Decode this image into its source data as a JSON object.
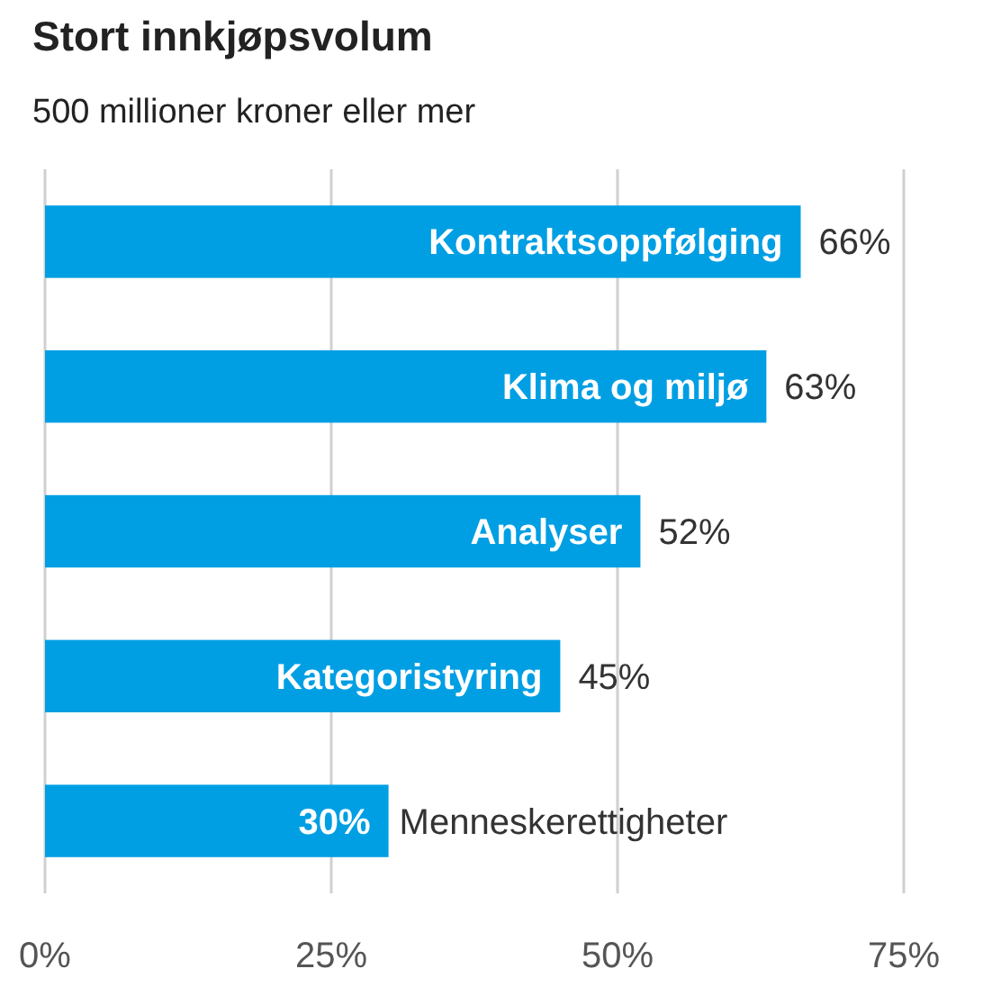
{
  "chart_data": {
    "type": "bar",
    "orientation": "horizontal",
    "title": "Stort innkjøpsvolum",
    "subtitle": "500 millioner kroner eller mer",
    "categories": [
      "Kontraktsoppfølging",
      "Klima og miljø",
      "Analyser",
      "Kategoristyring",
      "Menneskerettigheter"
    ],
    "values": [
      66,
      63,
      52,
      45,
      30
    ],
    "color": "#009fe3",
    "value_labels": [
      "66%",
      "63%",
      "52%",
      "45%",
      "30%"
    ],
    "xlim": [
      0,
      75
    ],
    "xticks": [
      {
        "value": 0,
        "label": "0%"
      },
      {
        "value": 25,
        "label": "25%"
      },
      {
        "value": 50,
        "label": "50%"
      },
      {
        "value": 75,
        "label": "75%"
      }
    ],
    "grid": "x"
  }
}
